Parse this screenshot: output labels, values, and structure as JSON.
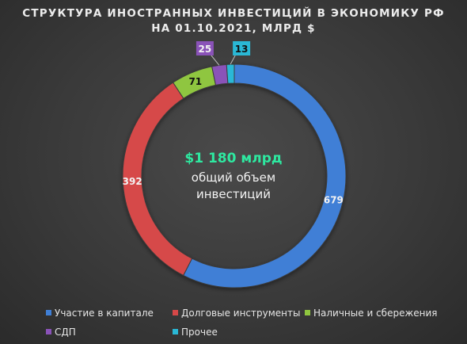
{
  "chart_data": {
    "type": "donut",
    "title": "СТРУКТУРА ИНОСТРАННЫХ ИНВЕСТИЦИЙ В ЭКОНОМИКУ РФ",
    "subtitle": "НА 01.10.2021, МЛРД $",
    "center": {
      "value": "$1 180 млрд",
      "label_line1": "общий объем",
      "label_line2": "инвестиций"
    },
    "legend_position": "bottom",
    "slices": [
      {
        "name": "Участие в капитале",
        "value": 679,
        "color": "#3f7fd6"
      },
      {
        "name": "Долговые инструменты",
        "value": 392,
        "color": "#d64848"
      },
      {
        "name": "Наличные и сбережения",
        "value": 71,
        "color": "#8fc63f"
      },
      {
        "name": "СДП",
        "value": 25,
        "color": "#8a52b8"
      },
      {
        "name": "Прочее",
        "value": 13,
        "color": "#2ab8d6"
      }
    ]
  }
}
